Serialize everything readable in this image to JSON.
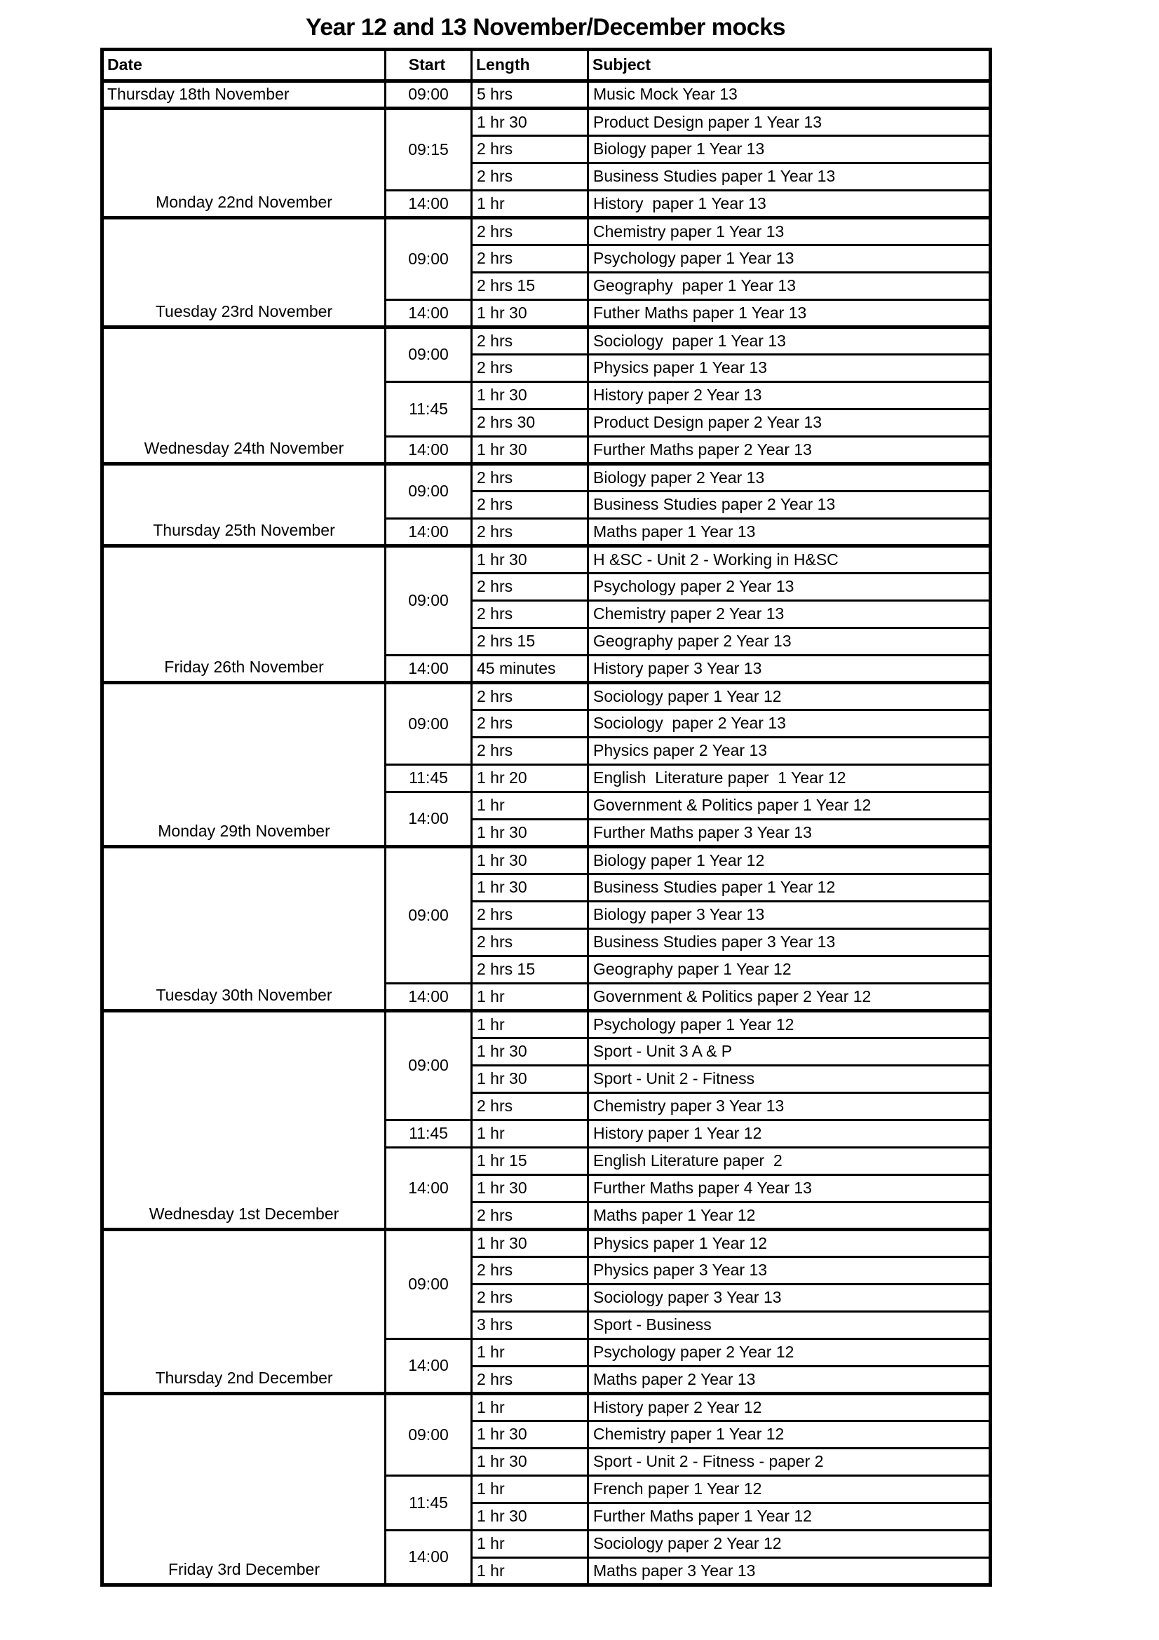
{
  "title": "Year 12 and 13 November/December mocks",
  "colors": {
    "text": "#000000",
    "background": "#ffffff",
    "grid": "#000000"
  },
  "table": {
    "headers": {
      "date": "Date",
      "start": "Start",
      "length": "Length",
      "subject": "Subject"
    },
    "days": [
      {
        "date": "Thursday 18th November",
        "date_align": "left",
        "sessions": [
          {
            "start": "09:00",
            "exams": [
              {
                "length": "5 hrs",
                "subject": "Music Mock Year 13"
              }
            ]
          }
        ]
      },
      {
        "date": "Monday 22nd November",
        "date_align": "center",
        "sessions": [
          {
            "start": "09:15",
            "exams": [
              {
                "length": "1 hr 30",
                "subject": "Product Design paper 1 Year 13"
              },
              {
                "length": "2 hrs",
                "subject": "Biology paper 1 Year 13"
              },
              {
                "length": "2 hrs",
                "subject": "Business Studies paper 1 Year 13"
              }
            ]
          },
          {
            "start": "14:00",
            "exams": [
              {
                "length": "1 hr",
                "subject": "History  paper 1 Year 13"
              }
            ]
          }
        ]
      },
      {
        "date": "Tuesday 23rd November",
        "date_align": "center",
        "sessions": [
          {
            "start": "09:00",
            "exams": [
              {
                "length": "2 hrs",
                "subject": "Chemistry paper 1 Year 13"
              },
              {
                "length": "2 hrs",
                "subject": "Psychology paper 1 Year 13"
              },
              {
                "length": "2 hrs 15",
                "subject": "Geography  paper 1 Year 13"
              }
            ]
          },
          {
            "start": "14:00",
            "exams": [
              {
                "length": "1 hr 30",
                "subject": "Futher Maths paper 1 Year 13"
              }
            ]
          }
        ]
      },
      {
        "date": "Wednesday 24th November",
        "date_align": "center",
        "sessions": [
          {
            "start": "09:00",
            "exams": [
              {
                "length": "2 hrs",
                "subject": "Sociology  paper 1 Year 13"
              },
              {
                "length": "2 hrs",
                "subject": "Physics paper 1 Year 13"
              }
            ]
          },
          {
            "start": "11:45",
            "exams": [
              {
                "length": "1 hr 30",
                "subject": "History paper 2 Year 13"
              },
              {
                "length": "2 hrs 30",
                "subject": "Product Design paper 2 Year 13"
              }
            ]
          },
          {
            "start": "14:00",
            "exams": [
              {
                "length": "1 hr 30",
                "subject": "Further Maths paper 2 Year 13"
              }
            ]
          }
        ]
      },
      {
        "date": "Thursday 25th November",
        "date_align": "center",
        "sessions": [
          {
            "start": "09:00",
            "exams": [
              {
                "length": "2 hrs",
                "subject": "Biology paper 2 Year 13"
              },
              {
                "length": "2 hrs",
                "subject": "Business Studies paper 2 Year 13"
              }
            ]
          },
          {
            "start": "14:00",
            "exams": [
              {
                "length": "2 hrs",
                "subject": "Maths paper 1 Year 13"
              }
            ]
          }
        ]
      },
      {
        "date": "Friday 26th November",
        "date_align": "center",
        "sessions": [
          {
            "start": "09:00",
            "exams": [
              {
                "length": "1 hr 30",
                "subject": "H &SC - Unit 2 - Working in H&SC"
              },
              {
                "length": "2 hrs",
                "subject": "Psychology paper 2 Year 13"
              },
              {
                "length": "2 hrs",
                "subject": "Chemistry paper 2 Year 13"
              },
              {
                "length": "2 hrs 15",
                "subject": "Geography paper 2 Year 13"
              }
            ]
          },
          {
            "start": "14:00",
            "exams": [
              {
                "length": "45 minutes",
                "subject": "History paper 3 Year 13"
              }
            ]
          }
        ]
      },
      {
        "date": "Monday 29th November",
        "date_align": "center",
        "sessions": [
          {
            "start": "09:00",
            "exams": [
              {
                "length": "2 hrs",
                "subject": "Sociology paper 1 Year 12"
              },
              {
                "length": "2 hrs",
                "subject": "Sociology  paper 2 Year 13"
              },
              {
                "length": "2 hrs",
                "subject": "Physics paper 2 Year 13"
              }
            ]
          },
          {
            "start": "11:45",
            "exams": [
              {
                "length": "1 hr 20",
                "subject": "English  Literature paper  1 Year 12"
              }
            ]
          },
          {
            "start": "14:00",
            "exams": [
              {
                "length": "1 hr",
                "subject": "Government & Politics paper 1 Year 12"
              },
              {
                "length": "1 hr 30",
                "subject": "Further Maths paper 3 Year 13"
              }
            ]
          }
        ]
      },
      {
        "date": "Tuesday 30th November",
        "date_align": "center",
        "sessions": [
          {
            "start": "09:00",
            "exams": [
              {
                "length": "1 hr 30",
                "subject": "Biology paper 1 Year 12"
              },
              {
                "length": "1 hr 30",
                "subject": "Business Studies paper 1 Year 12"
              },
              {
                "length": "2 hrs",
                "subject": "Biology paper 3 Year 13"
              },
              {
                "length": "2 hrs",
                "subject": "Business Studies paper 3 Year 13"
              },
              {
                "length": "2 hrs 15",
                "subject": "Geography paper 1 Year 12"
              }
            ]
          },
          {
            "start": "14:00",
            "exams": [
              {
                "length": "1 hr",
                "subject": "Government & Politics paper 2 Year 12"
              }
            ]
          }
        ]
      },
      {
        "date": "Wednesday 1st December",
        "date_align": "center",
        "sessions": [
          {
            "start": "09:00",
            "exams": [
              {
                "length": "1 hr",
                "subject": "Psychology paper 1 Year 12"
              },
              {
                "length": "1 hr 30",
                "subject": "Sport - Unit 3 A & P"
              },
              {
                "length": "1 hr 30",
                "subject": "Sport - Unit 2 - Fitness"
              },
              {
                "length": "2 hrs",
                "subject": "Chemistry paper 3 Year 13"
              }
            ]
          },
          {
            "start": "11:45",
            "exams": [
              {
                "length": "1 hr",
                "subject": "History paper 1 Year 12"
              }
            ]
          },
          {
            "start": "14:00",
            "exams": [
              {
                "length": "1 hr 15",
                "subject": "English Literature paper  2"
              },
              {
                "length": "1 hr 30",
                "subject": "Further Maths paper 4 Year 13"
              },
              {
                "length": "2 hrs",
                "subject": "Maths paper 1 Year 12"
              }
            ]
          }
        ]
      },
      {
        "date": "Thursday 2nd December",
        "date_align": "center",
        "sessions": [
          {
            "start": "09:00",
            "exams": [
              {
                "length": "1 hr 30",
                "subject": "Physics paper 1 Year 12"
              },
              {
                "length": "2 hrs",
                "subject": "Physics paper 3 Year 13"
              },
              {
                "length": "2 hrs",
                "subject": "Sociology paper 3 Year 13"
              },
              {
                "length": "3 hrs",
                "subject": "Sport - Business"
              }
            ]
          },
          {
            "start": "14:00",
            "exams": [
              {
                "length": "1 hr",
                "subject": "Psychology paper 2 Year 12"
              },
              {
                "length": "2 hrs",
                "subject": "Maths paper 2 Year 13"
              }
            ]
          }
        ]
      },
      {
        "date": "Friday 3rd December",
        "date_align": "center",
        "sessions": [
          {
            "start": "09:00",
            "exams": [
              {
                "length": "1 hr",
                "subject": "History paper 2 Year 12"
              },
              {
                "length": "1 hr 30",
                "subject": "Chemistry paper 1 Year 12"
              },
              {
                "length": "1 hr 30",
                "subject": "Sport - Unit 2 - Fitness - paper 2"
              }
            ]
          },
          {
            "start": "11:45",
            "exams": [
              {
                "length": "1 hr",
                "subject": "French paper 1 Year 12"
              },
              {
                "length": "1 hr 30",
                "subject": "Further Maths paper 1 Year 12"
              }
            ]
          },
          {
            "start": "14:00",
            "exams": [
              {
                "length": "1 hr",
                "subject": "Sociology paper 2 Year 12"
              },
              {
                "length": "1 hr",
                "subject": "Maths paper 3 Year 13"
              }
            ]
          }
        ]
      }
    ]
  }
}
